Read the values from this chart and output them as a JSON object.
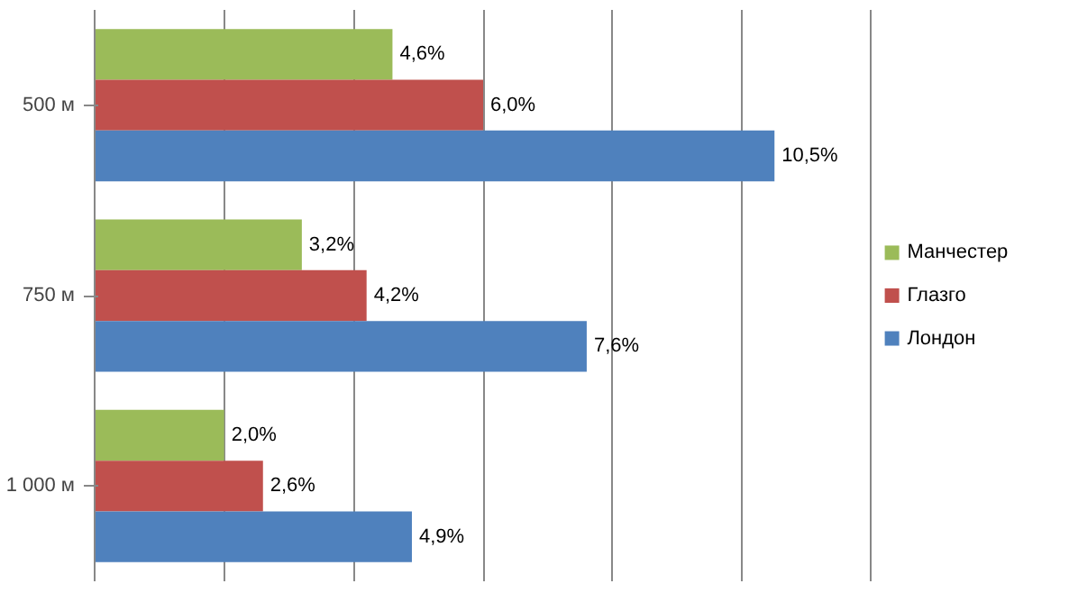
{
  "chart_data": {
    "type": "bar",
    "orientation": "horizontal",
    "categories": [
      "500 м",
      "750 м",
      "1 000 м"
    ],
    "series": [
      {
        "name": "Манчестер",
        "color": "#9bbb59",
        "values": [
          4.6,
          3.2,
          2.0
        ],
        "value_labels": [
          "4,6%",
          "3,2%",
          "2,0%"
        ]
      },
      {
        "name": "Глазго",
        "color": "#c0504d",
        "values": [
          6.0,
          4.2,
          2.6
        ],
        "value_labels": [
          "6,0%",
          "4,2%",
          "2,6%"
        ]
      },
      {
        "name": "Лондон",
        "color": "#4f81bd",
        "values": [
          10.5,
          7.6,
          4.9
        ],
        "value_labels": [
          "10,5%",
          "7,6%",
          "4,9%"
        ]
      }
    ],
    "xlim": [
      0,
      12
    ],
    "xticks": [
      {
        "value": 0,
        "label": null
      },
      {
        "value": 2,
        "label": null
      },
      {
        "value": 4,
        "label": null
      },
      {
        "value": 6,
        "label": null
      },
      {
        "value": 8,
        "label": null
      },
      {
        "value": 10,
        "label": null
      },
      {
        "value": 12,
        "label": null
      }
    ],
    "tick_labels": "y",
    "grid": "x",
    "legend": "right"
  }
}
